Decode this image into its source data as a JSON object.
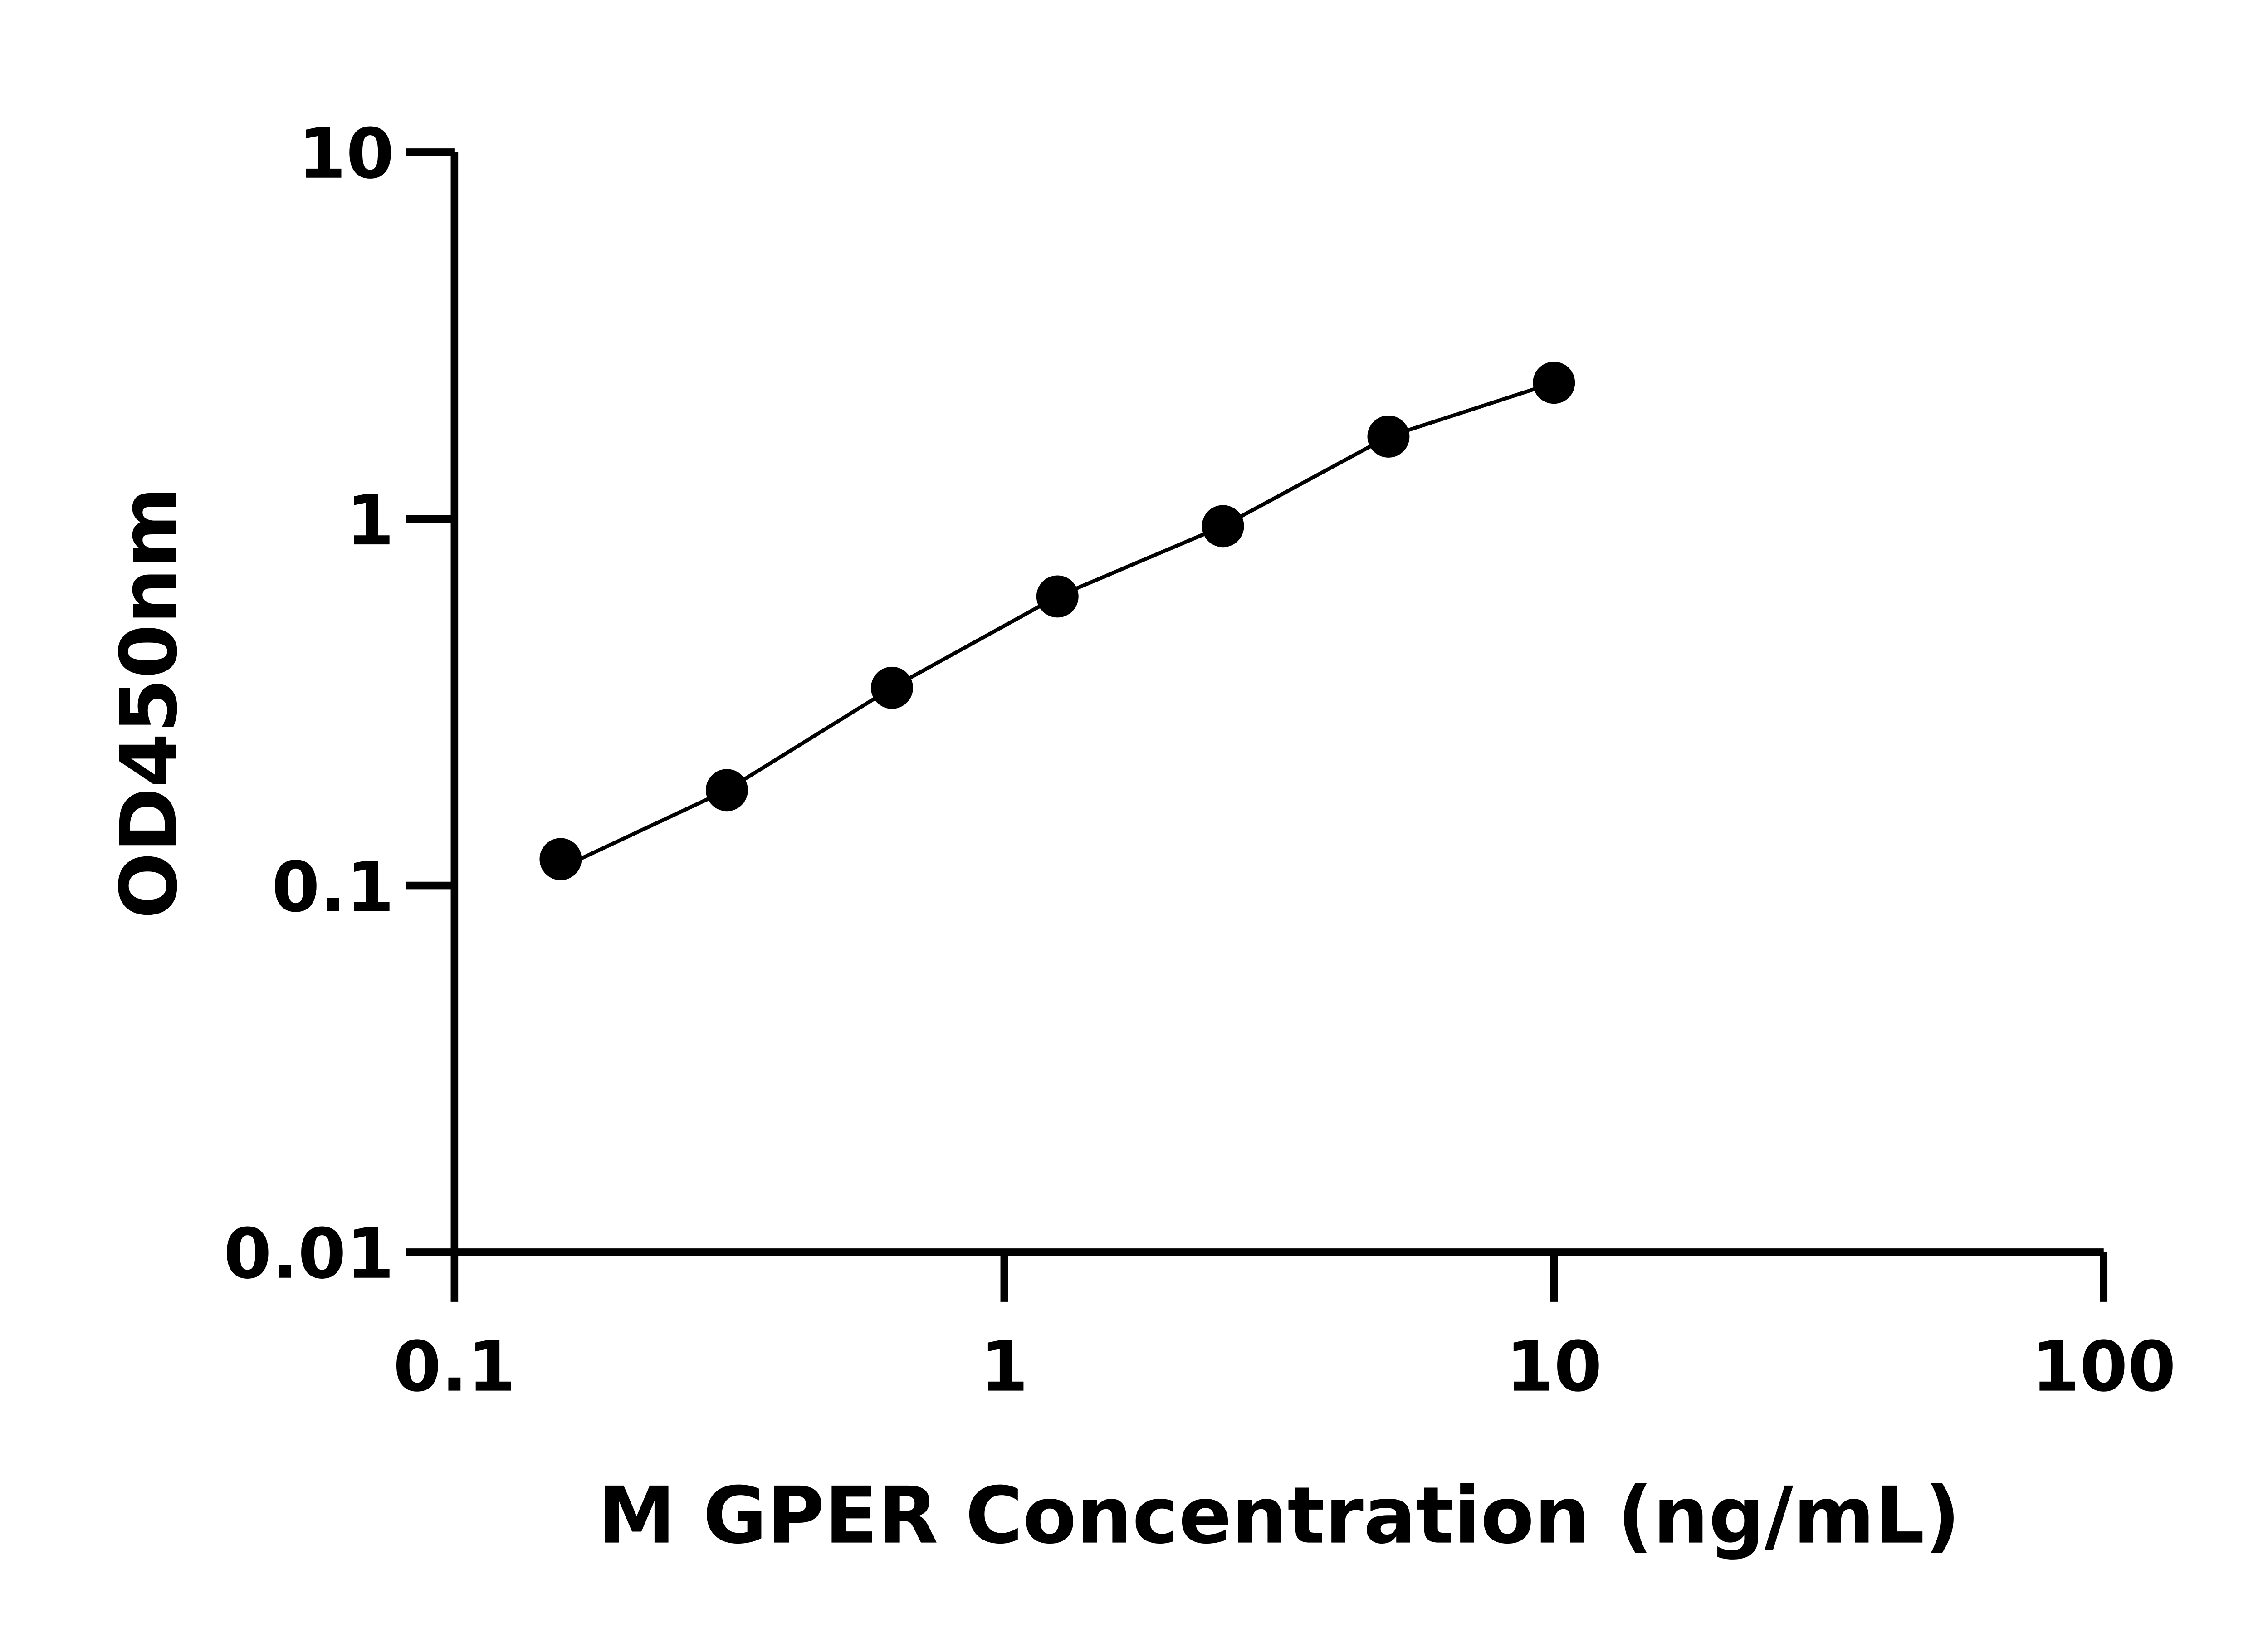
{
  "chart_data": {
    "type": "scatter",
    "title": "",
    "xlabel": "M GPER Concentration (ng/mL)",
    "ylabel": "OD450nm",
    "xscale": "log",
    "yscale": "log",
    "xlim": [
      0.1,
      100
    ],
    "ylim": [
      0.01,
      10
    ],
    "xticks": [
      "0.1",
      "1",
      "10",
      "100"
    ],
    "yticks": [
      "0.01",
      "0.1",
      "1",
      "10"
    ],
    "grid": false,
    "fit_line": true,
    "color": "#000000",
    "series": [
      {
        "x": [
          0.156,
          0.313,
          0.625,
          1.25,
          2.5,
          5,
          10
        ],
        "y": [
          0.118,
          0.182,
          0.346,
          0.614,
          0.955,
          1.676,
          2.35
        ]
      }
    ]
  }
}
